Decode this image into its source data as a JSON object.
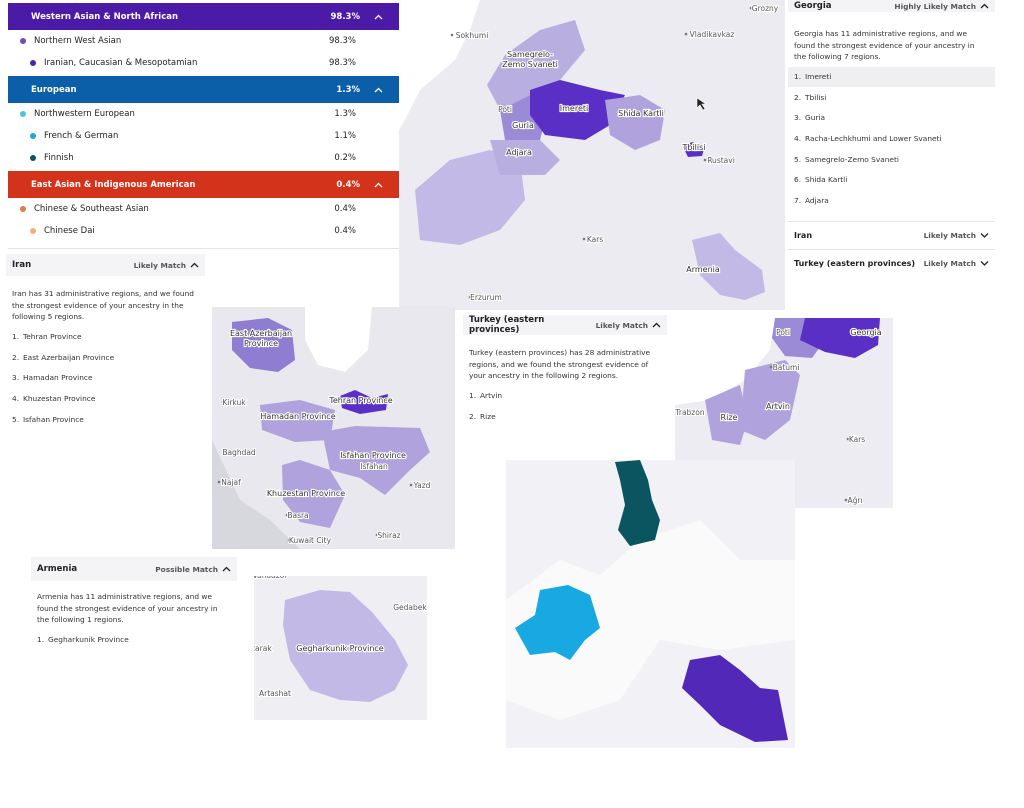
{
  "breakdown": {
    "groups": [
      {
        "name": "Western Asian & North African",
        "percent": "98.3%",
        "color": "#4b1aa6",
        "regions": [
          {
            "name": "Northern West Asian",
            "percent": "98.3%",
            "color": "#6a4cc0",
            "subregions": [
              {
                "name": "Iranian, Caucasian & Mesopotamian",
                "percent": "98.3%",
                "color": "#4a23a8"
              }
            ]
          }
        ]
      },
      {
        "name": "European",
        "percent": "1.3%",
        "color": "#0b5ea8",
        "regions": [
          {
            "name": "Northwestern European",
            "percent": "1.3%",
            "color": "#4cc3e6",
            "subregions": [
              {
                "name": "French & German",
                "percent": "1.1%",
                "color": "#19a7dc"
              },
              {
                "name": "Finnish",
                "percent": "0.2%",
                "color": "#0b5560"
              }
            ]
          }
        ]
      },
      {
        "name": "East Asian & Indigenous American",
        "percent": "0.4%",
        "color": "#d4331b",
        "regions": [
          {
            "name": "Chinese & Southeast Asian",
            "percent": "0.4%",
            "color": "#e07a4f",
            "subregions": [
              {
                "name": "Chinese Dai",
                "percent": "0.4%",
                "color": "#f0b07a"
              }
            ]
          }
        ]
      }
    ]
  },
  "panels": {
    "georgia": {
      "title": "Georgia",
      "match": "Highly Likely Match",
      "description": "Georgia has 11 administrative regions, and we found the strongest evidence of your ancestry in the following 7 regions.",
      "items": [
        {
          "number": "1.",
          "name": "Imereti"
        },
        {
          "number": "2.",
          "name": "Tbilisi"
        },
        {
          "number": "3.",
          "name": "Guria"
        },
        {
          "number": "4.",
          "name": "Racha-Lechkhumi and Lower Svaneti"
        },
        {
          "number": "5.",
          "name": "Samegrelo-Zemo Svaneti"
        },
        {
          "number": "6.",
          "name": "Shida Kartli"
        },
        {
          "number": "7.",
          "name": "Adjara"
        }
      ],
      "collapsed": [
        {
          "title": "Iran",
          "match": "Likely Match"
        },
        {
          "title": "Turkey (eastern provinces)",
          "match": "Likely Match"
        }
      ]
    },
    "iran": {
      "title": "Iran",
      "match": "Likely Match",
      "description": "Iran has 31 administrative regions, and we found the strongest evidence of your ancestry in the following 5 regions.",
      "items": [
        {
          "number": "1.",
          "name": "Tehran Province"
        },
        {
          "number": "2.",
          "name": "East Azerbaijan Province"
        },
        {
          "number": "3.",
          "name": "Hamadan Province"
        },
        {
          "number": "4.",
          "name": "Khuzestan Province"
        },
        {
          "number": "5.",
          "name": "Isfahan Province"
        }
      ]
    },
    "turkey": {
      "title": "Turkey (eastern provinces)",
      "match": "Likely Match",
      "description": "Turkey (eastern provinces) has 28 administrative regions, and we found the strongest evidence of your ancestry in the following 2 regions.",
      "items": [
        {
          "number": "1.",
          "name": "Artvin"
        },
        {
          "number": "2.",
          "name": "Rize"
        }
      ]
    },
    "armenia": {
      "title": "Armenia",
      "match": "Possible Match",
      "description": "Armenia has 11 administrative regions, and we found the strongest evidence of your ancestry in the following 1 regions.",
      "items": [
        {
          "number": "1.",
          "name": "Gegharkunik Province"
        }
      ]
    }
  },
  "maps": {
    "georgia": {
      "labels": [
        [
          "Sokhumi"
        ],
        [
          "Vladikavkaz"
        ],
        [
          "Grozny"
        ],
        [
          "Samegrelo-",
          "Zemo Svaneti"
        ],
        [
          "Imereti"
        ],
        [
          "Poti"
        ],
        [
          "Guria"
        ],
        [
          "Shida Kartli"
        ],
        [
          "Tbilisi"
        ],
        [
          "Rustavi"
        ],
        [
          "Adjara"
        ],
        [
          "Kars"
        ],
        [
          "Armenia"
        ],
        [
          "Erzurum"
        ]
      ]
    },
    "iran": {
      "labels": [
        [
          "East Azerbaijan",
          "Province"
        ],
        [
          "Tehran Province"
        ],
        [
          "Hamadan Province"
        ],
        [
          "Isfahan Province"
        ],
        [
          "Isfahan"
        ],
        [
          "Khuzestan Province"
        ],
        [
          "Kirkuk"
        ],
        [
          "Baghdad"
        ],
        [
          "Najaf"
        ],
        [
          "Yazd"
        ],
        [
          "Basra"
        ],
        [
          "Kuwait City"
        ],
        [
          "Shiraz"
        ]
      ]
    },
    "turkey": {
      "labels": [
        [
          "Poti"
        ],
        [
          "Georgia"
        ],
        [
          "Batumi"
        ],
        [
          "Trabzon"
        ],
        [
          "Rize"
        ],
        [
          "Artvin"
        ],
        [
          "Kars"
        ],
        [
          "Ağrı"
        ]
      ]
    },
    "armenia": {
      "labels": [
        [
          "Vanadzor"
        ],
        [
          "Gedabek"
        ],
        [
          "Gegharkunik Province"
        ],
        [
          "Ashtarak"
        ],
        [
          "Artashat"
        ]
      ]
    }
  }
}
